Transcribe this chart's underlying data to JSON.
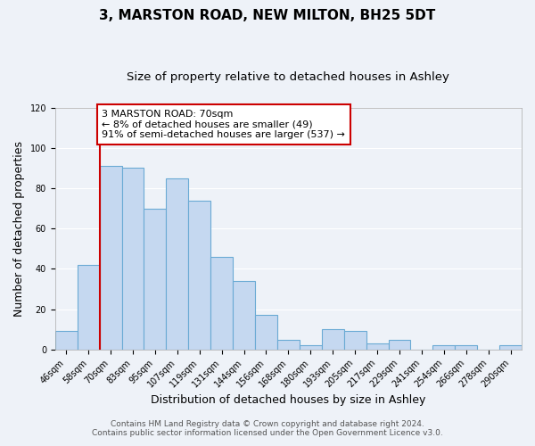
{
  "title": "3, MARSTON ROAD, NEW MILTON, BH25 5DT",
  "subtitle": "Size of property relative to detached houses in Ashley",
  "xlabel": "Distribution of detached houses by size in Ashley",
  "ylabel": "Number of detached properties",
  "bar_labels": [
    "46sqm",
    "58sqm",
    "70sqm",
    "83sqm",
    "95sqm",
    "107sqm",
    "119sqm",
    "131sqm",
    "144sqm",
    "156sqm",
    "168sqm",
    "180sqm",
    "193sqm",
    "205sqm",
    "217sqm",
    "229sqm",
    "241sqm",
    "254sqm",
    "266sqm",
    "278sqm",
    "290sqm"
  ],
  "bar_heights": [
    9,
    42,
    91,
    90,
    70,
    85,
    74,
    46,
    34,
    17,
    5,
    2,
    10,
    9,
    3,
    5,
    0,
    2,
    2,
    0,
    2
  ],
  "bar_color": "#c5d8f0",
  "bar_edgecolor": "#6aaad4",
  "bar_linewidth": 0.8,
  "background_color": "#eef2f8",
  "grid_color": "#ffffff",
  "vline_color": "#cc0000",
  "annotation_text": "3 MARSTON ROAD: 70sqm\n← 8% of detached houses are smaller (49)\n91% of semi-detached houses are larger (537) →",
  "annotation_box_edgecolor": "#cc0000",
  "annotation_box_facecolor": "#ffffff",
  "ylim": [
    0,
    120
  ],
  "yticks": [
    0,
    20,
    40,
    60,
    80,
    100,
    120
  ],
  "footer_line1": "Contains HM Land Registry data © Crown copyright and database right 2024.",
  "footer_line2": "Contains public sector information licensed under the Open Government Licence v3.0.",
  "title_fontsize": 11,
  "subtitle_fontsize": 9.5,
  "axis_label_fontsize": 9,
  "tick_fontsize": 7,
  "annotation_fontsize": 8,
  "footer_fontsize": 6.5
}
